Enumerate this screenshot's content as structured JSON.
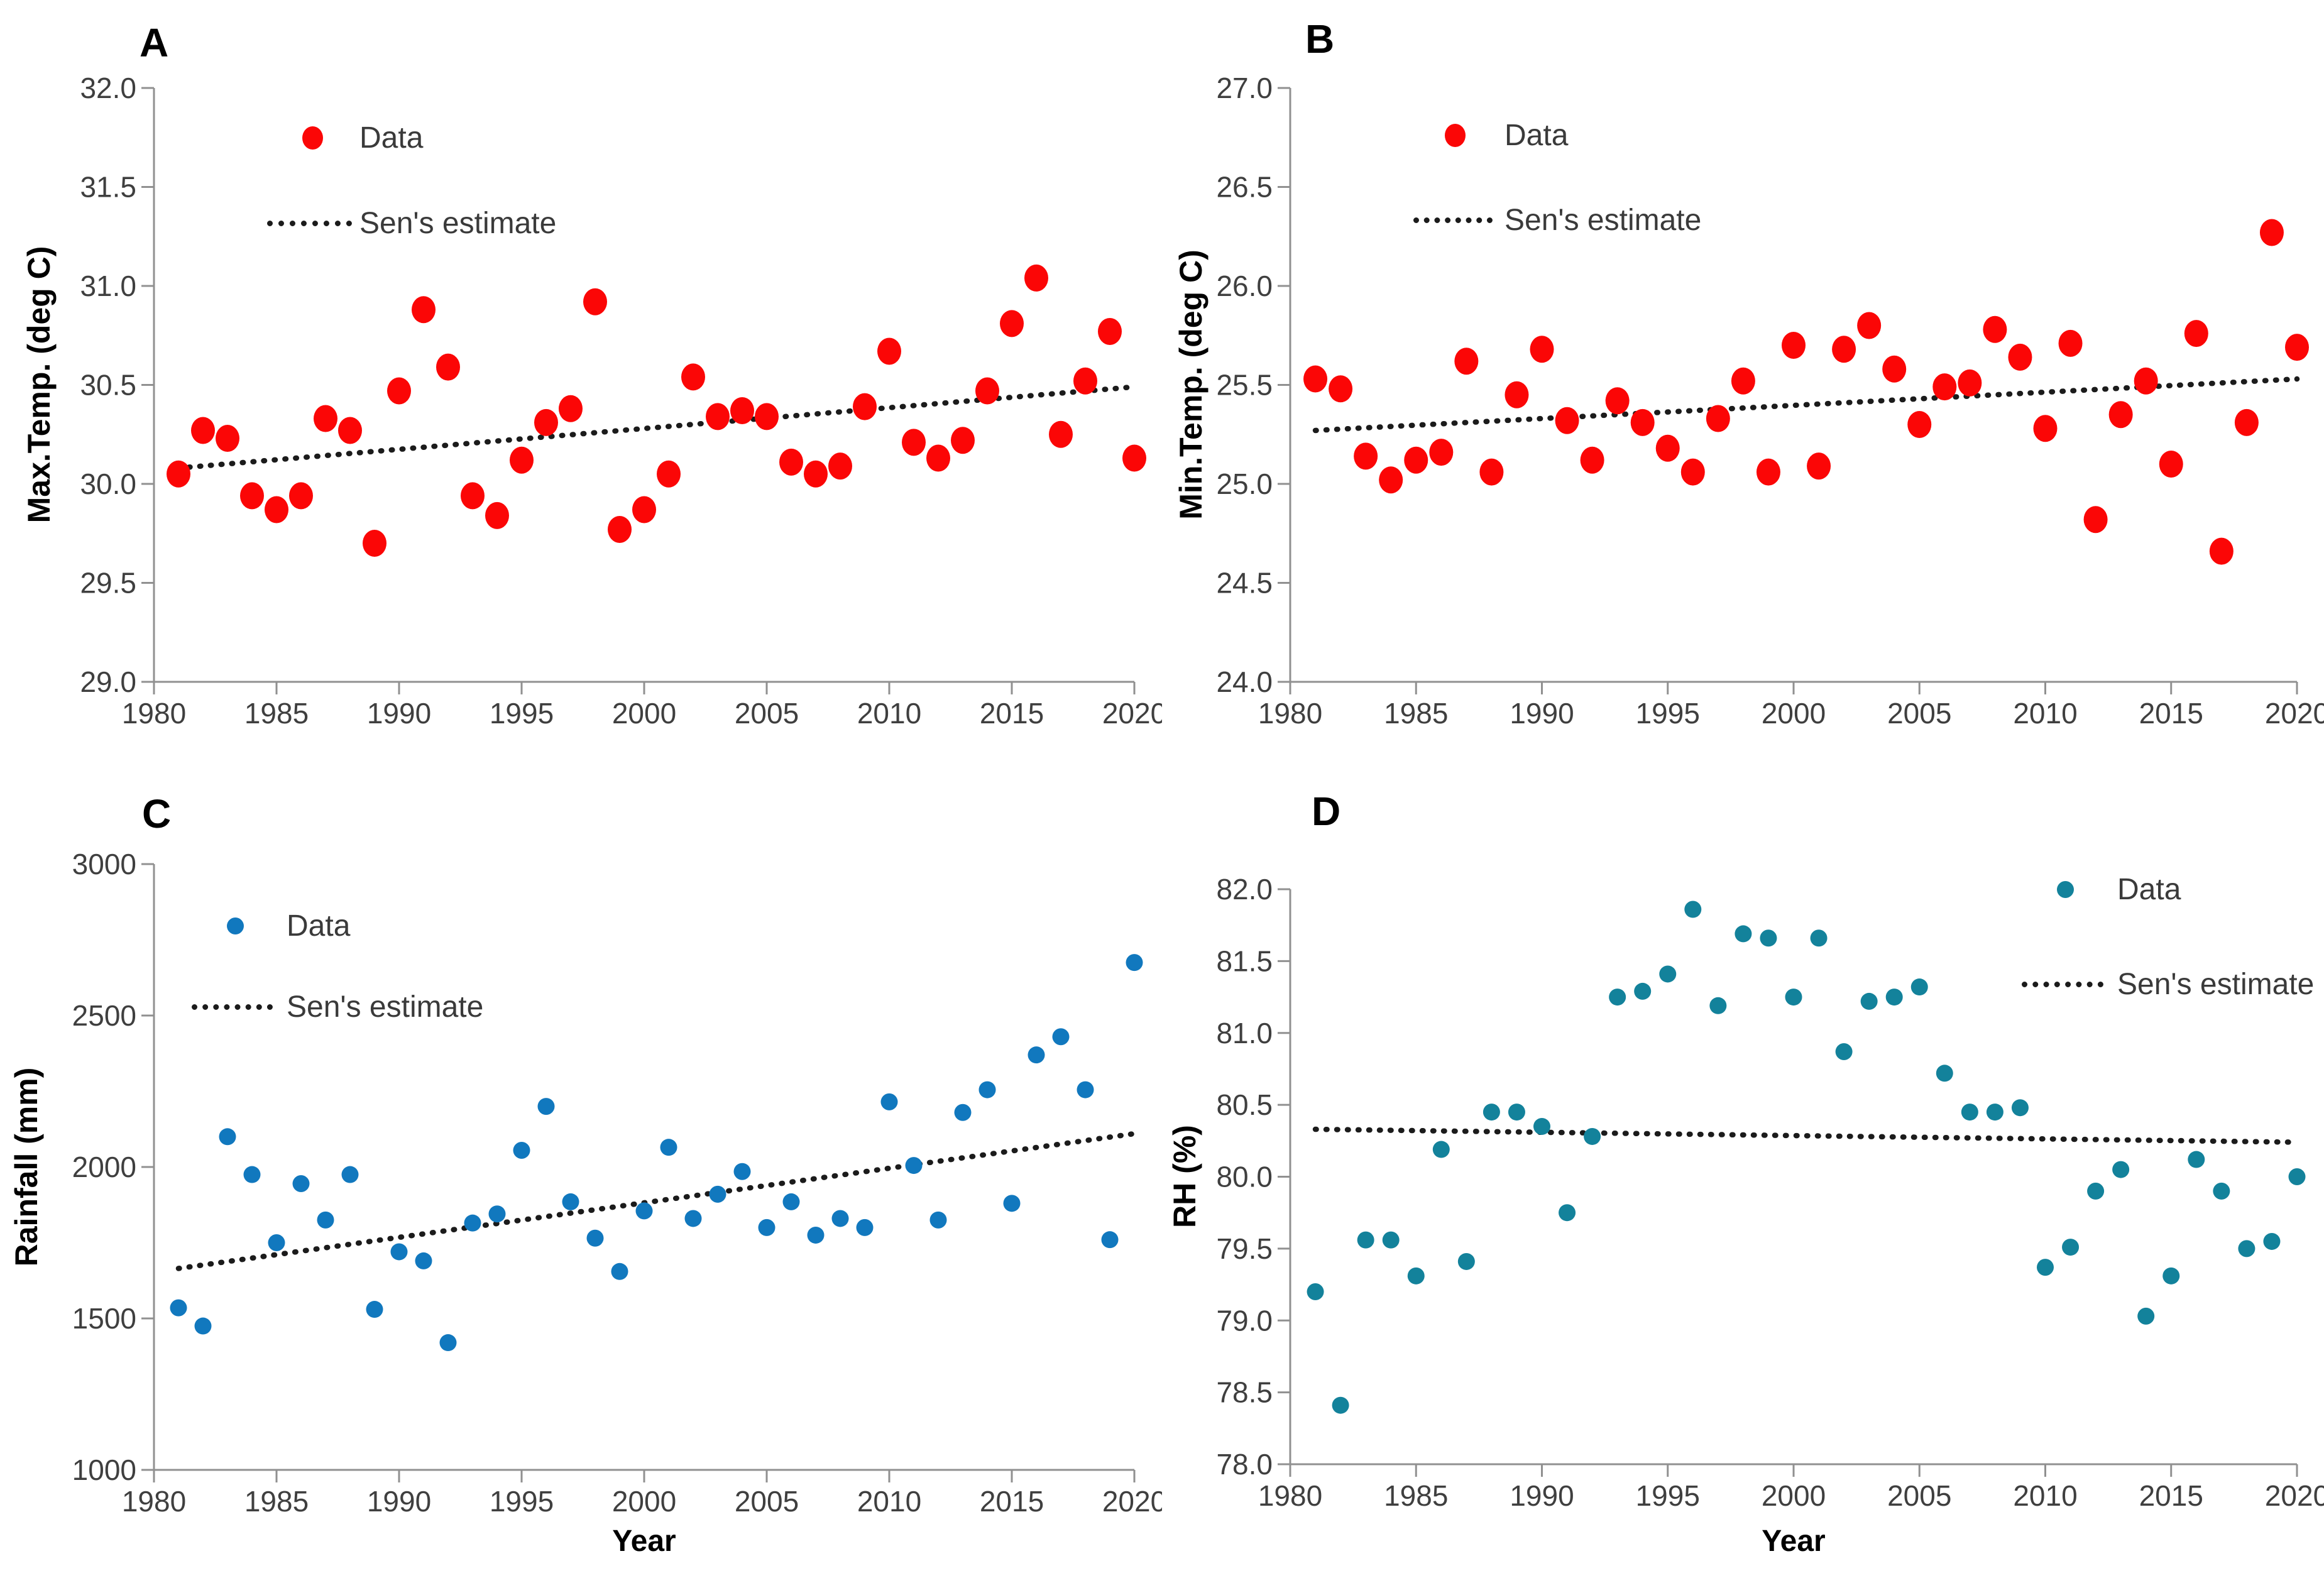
{
  "figure": {
    "legend_data_label": "Data",
    "legend_sen_label": "Sen's estimate",
    "x_axis_title": "Year",
    "axis_color": "#909090",
    "tick_label_color": "#3f3f3f",
    "sen_line_color": "#1b1b1b"
  },
  "chart_data": [
    {
      "type": "scatter",
      "title": "A",
      "ylabel": "Max.Temp. (deg C)",
      "xlabel": "",
      "legend": [
        "Data",
        "Sen's estimate"
      ],
      "legend_position": "top-left",
      "point_color": "#FB0606",
      "xlim": [
        1980,
        2020
      ],
      "x_tick_step": 5,
      "ylim": [
        29.0,
        32.0
      ],
      "y_tick_step": 0.5,
      "y_decimals": 1,
      "grid": false,
      "x": [
        1981,
        1982,
        1983,
        1984,
        1985,
        1986,
        1987,
        1988,
        1989,
        1990,
        1991,
        1992,
        1993,
        1994,
        1995,
        1996,
        1997,
        1998,
        1999,
        2000,
        2001,
        2002,
        2003,
        2004,
        2005,
        2006,
        2007,
        2008,
        2009,
        2010,
        2011,
        2012,
        2013,
        2014,
        2015,
        2016,
        2017,
        2018,
        2019,
        2020
      ],
      "series": [
        {
          "name": "Data",
          "values": [
            30.05,
            30.27,
            30.23,
            29.94,
            29.87,
            29.94,
            30.33,
            30.27,
            29.7,
            30.47,
            30.88,
            30.59,
            29.94,
            29.84,
            30.12,
            30.31,
            30.38,
            30.92,
            29.77,
            29.87,
            30.05,
            30.54,
            30.34,
            30.37,
            30.34,
            30.11,
            30.05,
            30.09,
            30.39,
            30.67,
            30.21,
            30.13,
            30.22,
            30.47,
            30.81,
            31.04,
            30.25,
            30.52,
            30.77,
            30.13
          ]
        },
        {
          "name": "Sen's estimate",
          "kind": "trend",
          "start": [
            1981,
            30.08
          ],
          "end": [
            2020,
            30.49
          ]
        }
      ]
    },
    {
      "type": "scatter",
      "title": "B",
      "ylabel": "Min.Temp. (deg C)",
      "xlabel": "",
      "legend": [
        "Data",
        "Sen's estimate"
      ],
      "legend_position": "top-left",
      "point_color": "#FB0606",
      "xlim": [
        1980,
        2020
      ],
      "x_tick_step": 5,
      "ylim": [
        24.0,
        27.0
      ],
      "y_tick_step": 0.5,
      "y_decimals": 1,
      "grid": false,
      "x": [
        1981,
        1982,
        1983,
        1984,
        1985,
        1986,
        1987,
        1988,
        1989,
        1990,
        1991,
        1992,
        1993,
        1994,
        1995,
        1996,
        1997,
        1998,
        1999,
        2000,
        2001,
        2002,
        2003,
        2004,
        2005,
        2006,
        2007,
        2008,
        2009,
        2010,
        2011,
        2012,
        2013,
        2014,
        2015,
        2016,
        2017,
        2018,
        2019,
        2020
      ],
      "series": [
        {
          "name": "Data",
          "values": [
            25.53,
            25.48,
            25.14,
            25.02,
            25.12,
            25.16,
            25.62,
            25.06,
            25.45,
            25.68,
            25.32,
            25.12,
            25.42,
            25.31,
            25.18,
            25.06,
            25.33,
            25.52,
            25.06,
            25.7,
            25.09,
            25.68,
            25.8,
            25.58,
            25.3,
            25.49,
            25.51,
            25.78,
            25.64,
            25.28,
            25.71,
            24.82,
            25.35,
            25.52,
            25.1,
            25.76,
            24.66,
            25.31,
            26.27,
            25.69
          ]
        },
        {
          "name": "Sen's estimate",
          "kind": "trend",
          "start": [
            1981,
            25.27
          ],
          "end": [
            2020,
            25.53
          ]
        }
      ]
    },
    {
      "type": "scatter",
      "title": "C",
      "ylabel": "Rainfall (mm)",
      "xlabel": "Year",
      "legend": [
        "Data",
        "Sen's estimate"
      ],
      "legend_position": "top-left",
      "point_color": "#1178BE",
      "xlim": [
        1980,
        2020
      ],
      "x_tick_step": 5,
      "ylim": [
        1000,
        3000
      ],
      "y_tick_step": 500,
      "y_decimals": 0,
      "grid": false,
      "x": [
        1981,
        1982,
        1983,
        1984,
        1985,
        1986,
        1987,
        1988,
        1989,
        1990,
        1991,
        1992,
        1993,
        1994,
        1995,
        1996,
        1997,
        1998,
        1999,
        2000,
        2001,
        2002,
        2003,
        2004,
        2005,
        2006,
        2007,
        2008,
        2009,
        2010,
        2011,
        2012,
        2013,
        2014,
        2015,
        2016,
        2017,
        2018,
        2019,
        2020
      ],
      "series": [
        {
          "name": "Data",
          "values": [
            1535,
            1475,
            2100,
            1975,
            1750,
            1945,
            1825,
            1975,
            1530,
            1720,
            1690,
            1420,
            1815,
            1845,
            2055,
            2200,
            1885,
            1765,
            1655,
            1855,
            2065,
            1830,
            1910,
            1985,
            1800,
            1885,
            1775,
            1830,
            1800,
            2215,
            2005,
            1825,
            2180,
            2255,
            1880,
            2370,
            2430,
            2255,
            1760,
            2675
          ]
        },
        {
          "name": "Sen's estimate",
          "kind": "trend",
          "start": [
            1981,
            1665
          ],
          "end": [
            2020,
            2110
          ]
        }
      ]
    },
    {
      "type": "scatter",
      "title": "D",
      "ylabel": "RH (%)",
      "xlabel": "Year",
      "legend": [
        "Data",
        "Sen's estimate"
      ],
      "legend_position": "top-right",
      "point_color": "#13829B",
      "xlim": [
        1980,
        2020
      ],
      "x_tick_step": 5,
      "ylim": [
        78.0,
        82.0
      ],
      "y_tick_step": 0.5,
      "y_decimals": 1,
      "grid": false,
      "x": [
        1981,
        1982,
        1983,
        1984,
        1985,
        1986,
        1987,
        1988,
        1989,
        1990,
        1991,
        1992,
        1993,
        1994,
        1995,
        1996,
        1997,
        1998,
        1999,
        2000,
        2001,
        2002,
        2003,
        2004,
        2005,
        2006,
        2007,
        2008,
        2009,
        2010,
        2011,
        2012,
        2013,
        2014,
        2015,
        2016,
        2017,
        2018,
        2019,
        2020
      ],
      "series": [
        {
          "name": "Data",
          "values": [
            79.2,
            78.41,
            79.56,
            79.56,
            79.31,
            80.19,
            79.41,
            80.45,
            80.45,
            80.35,
            79.75,
            80.28,
            81.25,
            81.29,
            81.41,
            81.86,
            81.19,
            81.69,
            81.66,
            81.25,
            81.66,
            80.87,
            81.22,
            81.25,
            81.32,
            80.72,
            80.45,
            80.45,
            80.48,
            79.37,
            79.51,
            79.9,
            80.05,
            79.03,
            79.31,
            80.12,
            79.9,
            79.5,
            79.55,
            80.0
          ]
        },
        {
          "name": "Sen's estimate",
          "kind": "trend",
          "start": [
            1981,
            80.33
          ],
          "end": [
            2020,
            80.24
          ]
        }
      ]
    }
  ]
}
